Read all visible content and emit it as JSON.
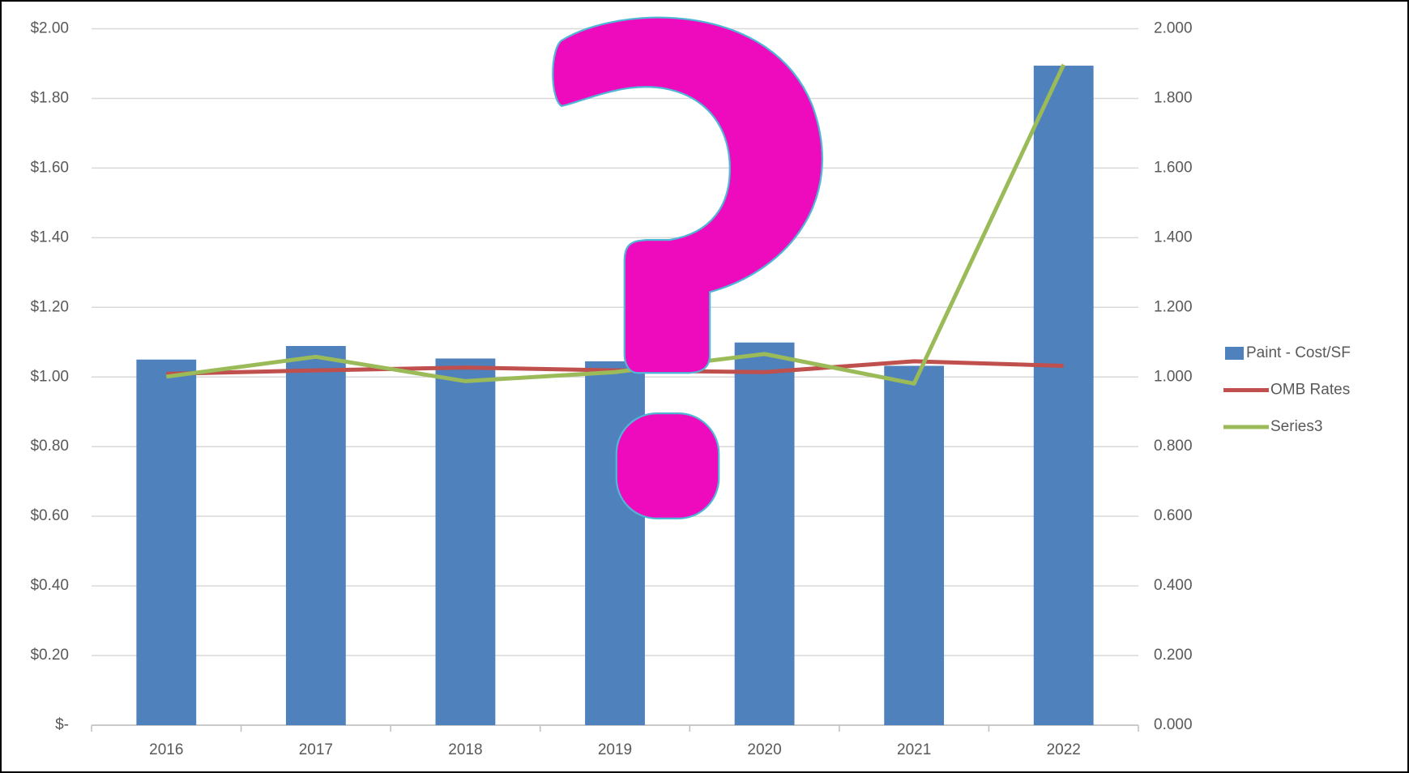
{
  "chart_data": {
    "type": "bar",
    "categories": [
      "2016",
      "2017",
      "2018",
      "2019",
      "2020",
      "2021",
      "2022"
    ],
    "series": [
      {
        "name": "Paint - Cost/SF",
        "type": "bar",
        "color": "#4f81bd",
        "values": [
          1.05,
          1.089,
          1.053,
          1.045,
          1.099,
          1.032,
          1.894
        ]
      },
      {
        "name": "OMB Rates",
        "type": "line",
        "axis": "y2",
        "color": "#c0504d",
        "values": [
          1.009,
          1.019,
          1.027,
          1.019,
          1.014,
          1.045,
          1.032
        ]
      },
      {
        "name": "Series3",
        "type": "line",
        "axis": "y2",
        "color": "#9bbb59",
        "values": [
          1.001,
          1.058,
          0.988,
          1.014,
          1.066,
          0.981,
          1.897
        ]
      }
    ],
    "ylim": [
      0,
      2
    ],
    "yticks": [
      {
        "value": 0,
        "label": "$-"
      },
      {
        "value": 0.2,
        "label": "$0.20"
      },
      {
        "value": 0.4,
        "label": "$0.40"
      },
      {
        "value": 0.6,
        "label": "$0.60"
      },
      {
        "value": 0.8,
        "label": "$0.80"
      },
      {
        "value": 1,
        "label": "$1.00"
      },
      {
        "value": 1.2,
        "label": "$1.20"
      },
      {
        "value": 1.4,
        "label": "$1.40"
      },
      {
        "value": 1.6,
        "label": "$1.60"
      },
      {
        "value": 1.8,
        "label": "$1.80"
      },
      {
        "value": 2,
        "label": "$2.00"
      }
    ],
    "y2lim": [
      0,
      2
    ],
    "y2ticks": [
      {
        "value": 0,
        "label": "0.000"
      },
      {
        "value": 0.2,
        "label": "0.200"
      },
      {
        "value": 0.4,
        "label": "0.400"
      },
      {
        "value": 0.6,
        "label": "0.600"
      },
      {
        "value": 0.8,
        "label": "0.800"
      },
      {
        "value": 1,
        "label": "1.000"
      },
      {
        "value": 1.2,
        "label": "1.200"
      },
      {
        "value": 1.4,
        "label": "1.400"
      },
      {
        "value": 1.6,
        "label": "1.600"
      },
      {
        "value": 1.8,
        "label": "1.800"
      },
      {
        "value": 2,
        "label": "2.000"
      }
    ],
    "grid": true,
    "legend": "right"
  }
}
